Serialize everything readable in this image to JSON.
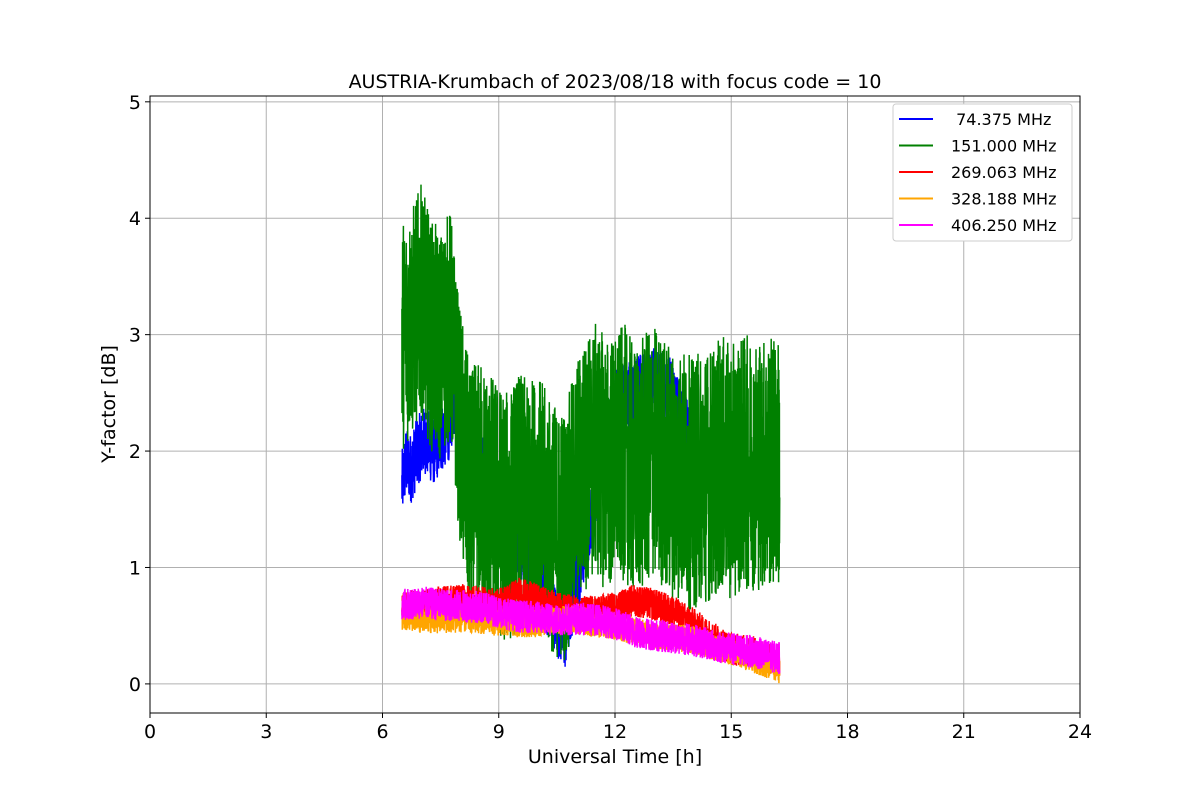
{
  "chart_data": {
    "type": "line",
    "title": "AUSTRIA-Krumbach of 2023/08/18 with focus code = 10",
    "xlabel": "Universal Time [h]",
    "ylabel": "Y-factor [dB]",
    "xlim": [
      0,
      24
    ],
    "ylim": [
      -0.25,
      5.05
    ],
    "xticks": [
      "0",
      "3",
      "6",
      "9",
      "12",
      "15",
      "18",
      "21",
      "24"
    ],
    "yticks": [
      "0",
      "1",
      "2",
      "3",
      "4",
      "5"
    ],
    "grid": true,
    "legend_position": "top-right",
    "series": [
      {
        "name": " 74.375 MHz",
        "color": "#0000ff",
        "x": [
          6.5,
          6.6,
          6.75,
          6.9,
          7.1,
          7.3,
          7.5,
          7.7,
          7.9,
          8.0,
          10.7,
          12.0,
          13.0,
          13.5,
          14.0
        ],
        "y": [
          1.7,
          1.9,
          1.85,
          2.0,
          2.1,
          2.0,
          2.1,
          2.2,
          2.5,
          2.3,
          0.4,
          2.4,
          2.6,
          2.5,
          2.0
        ]
      },
      {
        "name": "151.000 MHz",
        "color": "#008000",
        "x": [
          6.5,
          6.75,
          7.0,
          7.25,
          7.5,
          7.75,
          8.0,
          8.25,
          8.5,
          8.75,
          9.0,
          9.25,
          9.5,
          9.75,
          10.0,
          10.25,
          10.5,
          10.75,
          11.0,
          11.25,
          11.5,
          11.75,
          12.0,
          12.25,
          12.5,
          12.75,
          13.0,
          13.25,
          13.5,
          13.75,
          14.0,
          14.25,
          14.5,
          14.75,
          15.0,
          15.25,
          15.5,
          15.75,
          16.0,
          16.25
        ],
        "y": [
          3.0,
          3.1,
          3.3,
          3.0,
          2.9,
          3.1,
          2.2,
          1.6,
          1.7,
          1.6,
          1.5,
          1.4,
          1.6,
          1.5,
          1.6,
          1.4,
          1.3,
          1.3,
          1.7,
          1.9,
          2.0,
          1.9,
          1.9,
          2.0,
          1.8,
          1.9,
          2.0,
          1.9,
          1.8,
          1.8,
          1.7,
          1.8,
          1.8,
          1.9,
          1.8,
          1.9,
          1.9,
          1.9,
          1.9,
          1.9
        ]
      },
      {
        "name": "269.063 MHz",
        "color": "#ff0000",
        "x": [
          6.5,
          7.0,
          7.5,
          8.0,
          8.5,
          9.0,
          9.5,
          10.0,
          10.5,
          11.0,
          11.5,
          12.0,
          12.5,
          13.0,
          13.5,
          14.0,
          14.5,
          15.0,
          15.5,
          16.0,
          16.25
        ],
        "y": [
          0.65,
          0.68,
          0.7,
          0.72,
          0.7,
          0.68,
          0.78,
          0.72,
          0.65,
          0.62,
          0.62,
          0.65,
          0.72,
          0.68,
          0.62,
          0.52,
          0.4,
          0.3,
          0.28,
          0.22,
          0.2
        ]
      },
      {
        "name": "328.188 MHz",
        "color": "#ffa500",
        "x": [
          6.5,
          7.0,
          7.5,
          8.0,
          8.5,
          9.0,
          9.5,
          10.0,
          10.5,
          11.0,
          11.5,
          12.0,
          12.5,
          13.0,
          13.5,
          14.0,
          14.5,
          15.0,
          15.5,
          16.0,
          16.25
        ],
        "y": [
          0.58,
          0.56,
          0.55,
          0.56,
          0.55,
          0.53,
          0.52,
          0.52,
          0.55,
          0.55,
          0.52,
          0.5,
          0.45,
          0.42,
          0.4,
          0.38,
          0.33,
          0.28,
          0.22,
          0.16,
          0.12
        ]
      },
      {
        "name": "406.250 MHz",
        "color": "#ff00ff",
        "x": [
          6.5,
          7.0,
          7.5,
          8.0,
          8.5,
          9.0,
          9.5,
          10.0,
          10.5,
          11.0,
          11.5,
          12.0,
          12.5,
          13.0,
          13.5,
          14.0,
          14.5,
          15.0,
          15.5,
          16.0,
          16.25
        ],
        "y": [
          0.68,
          0.7,
          0.68,
          0.67,
          0.66,
          0.62,
          0.58,
          0.57,
          0.55,
          0.56,
          0.55,
          0.52,
          0.45,
          0.42,
          0.4,
          0.38,
          0.33,
          0.3,
          0.28,
          0.24,
          0.22
        ]
      }
    ]
  }
}
